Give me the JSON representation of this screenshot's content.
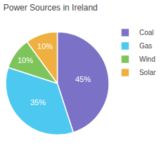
{
  "chart_data": {
    "type": "pie",
    "title": "Power Sources in Ireland",
    "categories": [
      "Coal",
      "Gas",
      "Wind",
      "Solar"
    ],
    "values": [
      45,
      35,
      10,
      10
    ],
    "value_labels": [
      "45%",
      "35%",
      "10%",
      "10%"
    ],
    "colors": [
      "#7B72C8",
      "#4DC8F0",
      "#7DC45A",
      "#F0B040"
    ],
    "data_labels": true,
    "legend": "right"
  }
}
